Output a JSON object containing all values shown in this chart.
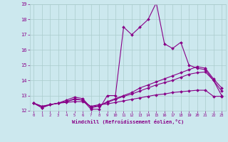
{
  "xlabel": "Windchill (Refroidissement éolien,°C)",
  "background_color": "#cce8ee",
  "grid_color": "#aacccc",
  "line_color": "#880088",
  "x_values": [
    0,
    1,
    2,
    3,
    4,
    5,
    6,
    7,
    8,
    9,
    10,
    11,
    12,
    13,
    14,
    15,
    16,
    17,
    18,
    19,
    20,
    21,
    22,
    23
  ],
  "series1": [
    12.5,
    12.2,
    12.4,
    12.5,
    12.6,
    12.8,
    12.7,
    12.1,
    12.1,
    13.0,
    13.0,
    17.5,
    17.0,
    17.5,
    18.0,
    19.1,
    16.4,
    16.1,
    16.5,
    15.0,
    14.8,
    14.7,
    14.0,
    13.0
  ],
  "series2": [
    12.5,
    12.2,
    12.4,
    12.5,
    12.7,
    12.9,
    12.8,
    12.2,
    12.3,
    12.6,
    12.8,
    13.0,
    13.2,
    13.5,
    13.7,
    13.9,
    14.1,
    14.3,
    14.5,
    14.7,
    14.9,
    14.8,
    14.1,
    13.5
  ],
  "series3": [
    12.5,
    12.3,
    12.4,
    12.5,
    12.6,
    12.75,
    12.7,
    12.25,
    12.35,
    12.55,
    12.75,
    12.95,
    13.1,
    13.3,
    13.5,
    13.7,
    13.85,
    14.0,
    14.2,
    14.4,
    14.5,
    14.55,
    14.0,
    13.3
  ],
  "series4": [
    12.5,
    12.3,
    12.4,
    12.5,
    12.55,
    12.6,
    12.6,
    12.3,
    12.4,
    12.45,
    12.55,
    12.65,
    12.75,
    12.85,
    12.95,
    13.05,
    13.1,
    13.2,
    13.25,
    13.3,
    13.35,
    13.35,
    12.95,
    12.95
  ],
  "ylim": [
    12,
    19
  ],
  "yticks": [
    12,
    13,
    14,
    15,
    16,
    17,
    18,
    19
  ],
  "xlim": [
    -0.5,
    23.5
  ]
}
